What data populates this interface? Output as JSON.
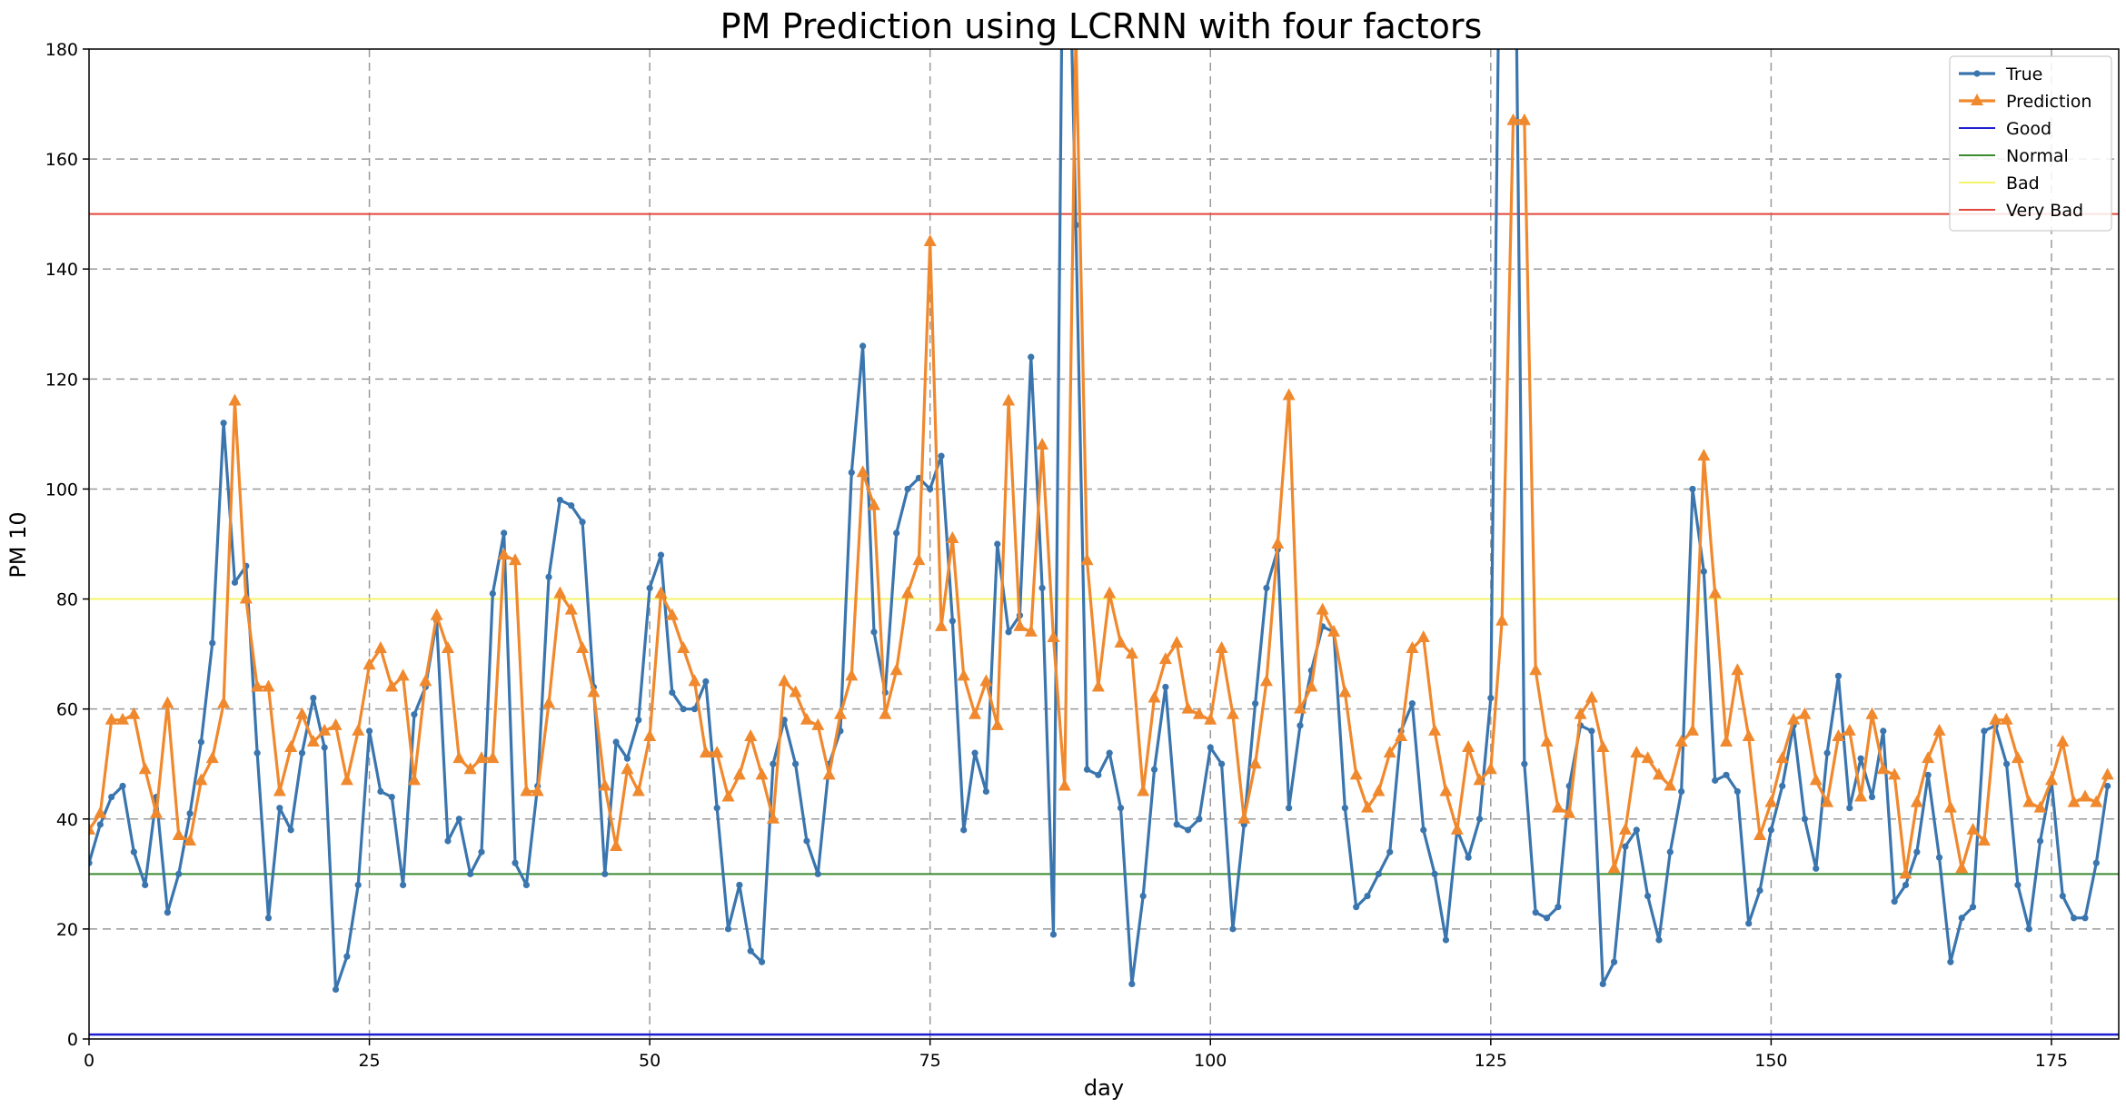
{
  "chart_data": {
    "type": "line",
    "title": "PM Prediction using LCRNN with four factors",
    "xlabel": "day",
    "ylabel": "PM 10",
    "xlim": [
      0,
      181
    ],
    "ylim": [
      0,
      180
    ],
    "xticks": [
      0,
      25,
      50,
      75,
      100,
      125,
      150,
      175
    ],
    "yticks": [
      0,
      20,
      40,
      60,
      80,
      100,
      120,
      140,
      160,
      180
    ],
    "grid": true,
    "legend_position": "top-right",
    "series": [
      {
        "name": "True",
        "color": "#3a75ae",
        "marker": "circle",
        "values": [
          32,
          39,
          44,
          46,
          34,
          28,
          44,
          23,
          30,
          41,
          54,
          72,
          112,
          83,
          86,
          52,
          22,
          42,
          38,
          52,
          62,
          53,
          9,
          15,
          28,
          56,
          45,
          44,
          28,
          59,
          64,
          76,
          36,
          40,
          30,
          34,
          81,
          92,
          32,
          28,
          46,
          84,
          98,
          97,
          94,
          64,
          30,
          54,
          51,
          58,
          82,
          88,
          63,
          60,
          60,
          65,
          42,
          20,
          28,
          16,
          14,
          50,
          58,
          50,
          36,
          30,
          50,
          56,
          103,
          126,
          74,
          63,
          92,
          100,
          102,
          100,
          106,
          76,
          38,
          52,
          45,
          90,
          74,
          77,
          124,
          82,
          19,
          240,
          148,
          49,
          48,
          52,
          42,
          10,
          26,
          49,
          64,
          39,
          38,
          40,
          53,
          50,
          20,
          39,
          61,
          82,
          89,
          42,
          57,
          67,
          75,
          74,
          42,
          24,
          26,
          30,
          34,
          56,
          61,
          38,
          30,
          18,
          38,
          33,
          40,
          62,
          240,
          240,
          50,
          23,
          22,
          24,
          46,
          57,
          56,
          10,
          14,
          35,
          38,
          26,
          18,
          34,
          45,
          100,
          85,
          47,
          48,
          45,
          21,
          27,
          38,
          46,
          57,
          40,
          31,
          52,
          66,
          42,
          51,
          44,
          56,
          25,
          28,
          34,
          48,
          33,
          14,
          22,
          24,
          56,
          57,
          50,
          28,
          20,
          36,
          47,
          26,
          22,
          22,
          32,
          46
        ]
      },
      {
        "name": "Prediction",
        "color": "#f0892e",
        "marker": "triangle",
        "values": [
          38,
          41,
          58,
          58,
          59,
          49,
          41,
          61,
          37,
          36,
          47,
          51,
          61,
          116,
          80,
          64,
          64,
          45,
          53,
          59,
          54,
          56,
          57,
          47,
          56,
          68,
          71,
          64,
          66,
          47,
          65,
          77,
          71,
          51,
          49,
          51,
          51,
          88,
          87,
          45,
          45,
          61,
          81,
          78,
          71,
          63,
          46,
          35,
          49,
          45,
          55,
          81,
          77,
          71,
          65,
          52,
          52,
          44,
          48,
          55,
          48,
          40,
          65,
          63,
          58,
          57,
          48,
          59,
          66,
          103,
          97,
          59,
          67,
          81,
          87,
          145,
          75,
          91,
          66,
          59,
          65,
          57,
          116,
          75,
          74,
          108,
          73,
          46,
          183,
          87,
          64,
          81,
          72,
          70,
          45,
          62,
          69,
          72,
          60,
          59,
          58,
          71,
          59,
          40,
          50,
          65,
          90,
          117,
          60,
          64,
          78,
          74,
          63,
          48,
          42,
          45,
          52,
          55,
          71,
          73,
          56,
          45,
          38,
          53,
          47,
          49,
          76,
          167,
          167,
          67,
          54,
          42,
          41,
          59,
          62,
          53,
          31,
          38,
          52,
          51,
          48,
          46,
          54,
          56,
          106,
          81,
          54,
          67,
          55,
          37,
          43,
          51,
          58,
          59,
          47,
          43,
          55,
          56,
          44,
          59,
          49,
          48,
          30,
          43,
          51,
          56,
          42,
          31,
          38,
          36,
          58,
          58,
          51,
          43,
          42,
          47,
          54,
          43,
          44,
          43,
          48
        ]
      }
    ],
    "thresholds": [
      {
        "name": "Good",
        "value": 0.8,
        "color": "#1f1fcf"
      },
      {
        "name": "Normal",
        "value": 30,
        "color": "#3a8a2e"
      },
      {
        "name": "Bad",
        "value": 80,
        "color": "#f4f46a"
      },
      {
        "name": "Very Bad",
        "value": 150,
        "color": "#e2463a"
      }
    ]
  }
}
